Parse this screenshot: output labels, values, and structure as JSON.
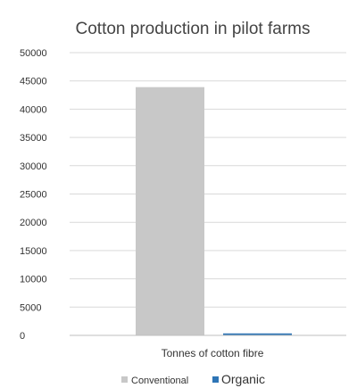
{
  "chart_data": {
    "type": "bar",
    "title": "Cotton production in pilot farms",
    "xlabel": "",
    "ylabel": "",
    "categories": [
      "Tonnes of cotton fibre"
    ],
    "series": [
      {
        "name": "Conventional",
        "values": [
          43900
        ],
        "color": "#c8c8c8"
      },
      {
        "name": "Organic",
        "values": [
          350
        ],
        "color": "#2e75b6"
      }
    ],
    "ylim": [
      0,
      50000
    ],
    "yticks": [
      "0",
      "5000",
      "10000",
      "15000",
      "20000",
      "25000",
      "30000",
      "35000",
      "40000",
      "45000",
      "50000"
    ],
    "grid": true,
    "legend": "bottom"
  }
}
